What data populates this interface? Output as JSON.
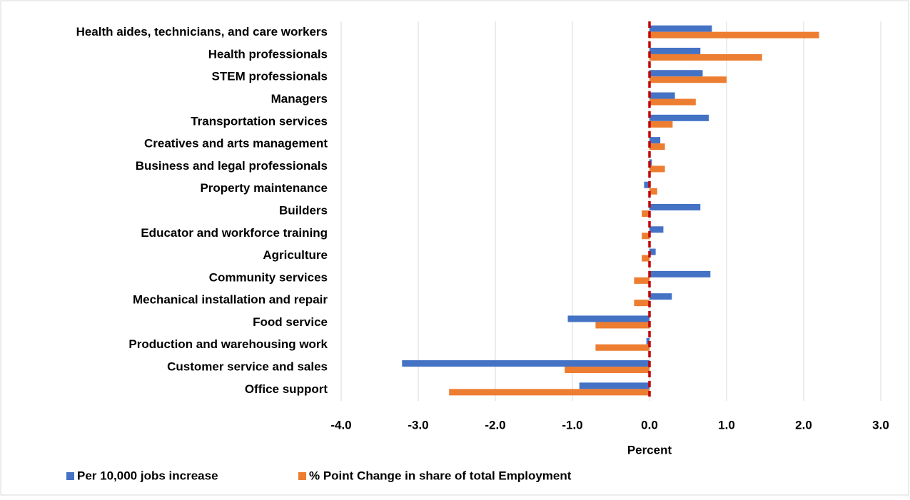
{
  "chart_data": {
    "type": "hbar",
    "x_label": "Percent",
    "categories": [
      "Health aides, technicians, and care workers",
      "Health professionals",
      "STEM professionals",
      "Managers",
      "Transportation services",
      "Creatives and arts management",
      "Business and legal professionals",
      "Property maintenance",
      "Builders",
      "Educator and workforce training",
      "Agriculture",
      "Community services",
      "Mechanical installation and repair",
      "Food service",
      "Production and warehousing work",
      "Customer service and sales",
      "Office support"
    ],
    "series": [
      {
        "name": "Per 10,000 jobs increase",
        "color": "#4472c4",
        "values": [
          0.81,
          0.66,
          0.69,
          0.33,
          0.77,
          0.14,
          0.03,
          -0.07,
          0.66,
          0.18,
          0.08,
          0.79,
          0.29,
          -1.06,
          -0.04,
          -3.21,
          -0.91
        ]
      },
      {
        "name": "% Point Change in share of total Employment",
        "color": "#ed7d31",
        "values": [
          2.2,
          1.46,
          1.0,
          0.6,
          0.3,
          0.2,
          0.2,
          0.1,
          -0.1,
          -0.1,
          -0.1,
          -0.2,
          -0.2,
          -0.7,
          -0.7,
          -1.1,
          -2.6
        ]
      }
    ],
    "xlim": [
      -4,
      3
    ],
    "xticks": [
      {
        "value": -4,
        "label": "-4.0"
      },
      {
        "value": -3,
        "label": "-3.0"
      },
      {
        "value": -2,
        "label": "-2.0"
      },
      {
        "value": -1,
        "label": "-1.0"
      },
      {
        "value": 0,
        "label": "0.0"
      },
      {
        "value": 1,
        "label": "1.0"
      },
      {
        "value": 2,
        "label": "2.0"
      },
      {
        "value": 3,
        "label": "3.0"
      }
    ],
    "grid": true,
    "legend": "bottom"
  }
}
